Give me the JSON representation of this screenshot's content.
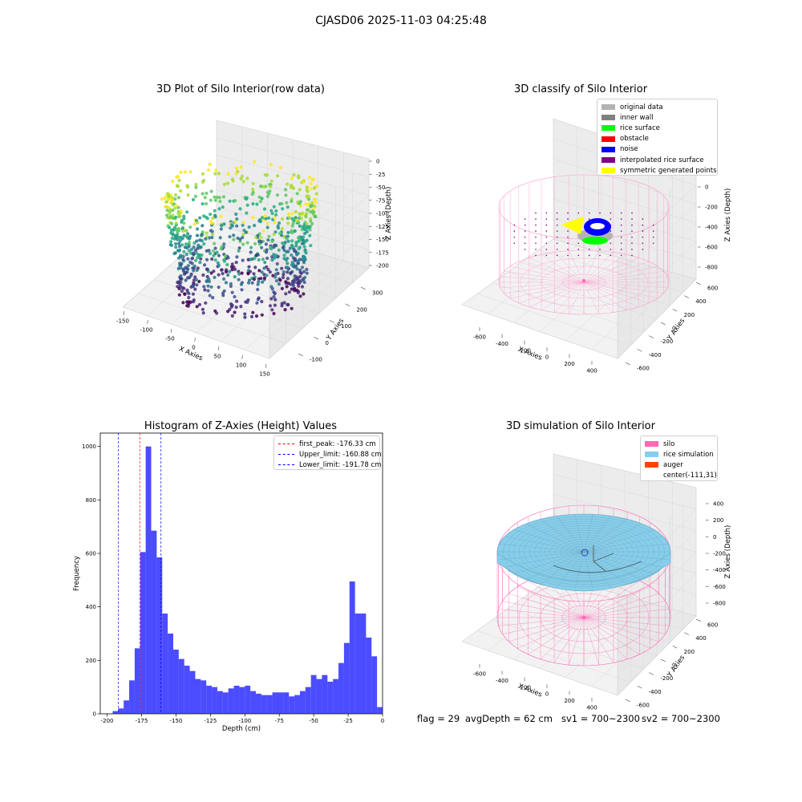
{
  "suptitle": "CJASD06 2025-11-03 04:25:48",
  "panels": {
    "raw": {
      "title": "3D Plot of Silo Interior(row data)",
      "xlabel": "X Axies",
      "ylabel": "Y Axies",
      "zlabel": "Z Axies (Depth)",
      "xticks": [
        "-150",
        "-100",
        "-50",
        "0",
        "50",
        "100",
        "150"
      ],
      "yticks": [
        "-100",
        "0",
        "100",
        "200",
        "300"
      ],
      "zticks": [
        "0",
        "-25",
        "-50",
        "-75",
        "-100",
        "-125",
        "-150",
        "-175",
        "-200"
      ]
    },
    "classify": {
      "title": "3D classify of Silo Interior",
      "xlabel": "X Axies",
      "ylabel": "Y Axies",
      "zlabel": "Z Axies (Depth)",
      "xticks": [
        "-600",
        "-400",
        "-200",
        "0",
        "200",
        "400"
      ],
      "yticks": [
        "-600",
        "-400",
        "-200",
        "0",
        "200",
        "400",
        "600"
      ],
      "zticks": [
        "200",
        "0",
        "-200",
        "-400",
        "-600",
        "-800"
      ],
      "legend": [
        {
          "label": "original data",
          "color": "#b3b3b3"
        },
        {
          "label": "inner wall",
          "color": "#808080"
        },
        {
          "label": "rice surface",
          "color": "#00ff00"
        },
        {
          "label": "obstacle",
          "color": "#ff0000"
        },
        {
          "label": "noise",
          "color": "#0000ff"
        },
        {
          "label": "interpolated rice surface",
          "color": "#800080"
        },
        {
          "label": "symmetric generated points",
          "color": "#ffff00"
        }
      ]
    },
    "simulation": {
      "title": "3D simulation of Silo Interior",
      "xlabel": "X Axies",
      "ylabel": "Y Axies",
      "zlabel": "Z Axies (Depth)",
      "xticks": [
        "-600",
        "-400",
        "-200",
        "0",
        "200",
        "400"
      ],
      "yticks": [
        "-600",
        "-400",
        "-200",
        "0",
        "200",
        "400",
        "600"
      ],
      "zticks": [
        "400",
        "200",
        "0",
        "-200",
        "-400",
        "-600",
        "-800"
      ],
      "legend": [
        {
          "label": "silo",
          "color": "#ff69b4"
        },
        {
          "label": "rice simulation",
          "color": "#87ceeb"
        },
        {
          "label": "auger",
          "color": "#ff4500"
        },
        {
          "label": "center(-111,31)",
          "color": ""
        }
      ]
    }
  },
  "status": {
    "flag": "flag = 29",
    "avg": "avgDepth = 62 cm",
    "sv1": "sv1 = 700~2300",
    "sv2": "sv2 = 700~2300"
  },
  "chart_data": [
    {
      "type": "scatter",
      "title": "3D Plot of Silo Interior(row data)",
      "xlabel": "X Axies",
      "ylabel": "Y Axies",
      "zlabel": "Z Axies (Depth)",
      "xlim": [
        -150,
        150
      ],
      "ylim": [
        -150,
        300
      ],
      "zlim": [
        -200,
        0
      ],
      "colormap": "viridis"
    },
    {
      "type": "scatter",
      "title": "3D classify of Silo Interior",
      "xlabel": "X Axies",
      "ylabel": "Y Axies",
      "zlabel": "Z Axies (Depth)",
      "xlim": [
        -700,
        500
      ],
      "ylim": [
        -650,
        650
      ],
      "zlim": [
        -900,
        300
      ]
    },
    {
      "type": "bar",
      "title": "Histogram of Z-Axies (Height) Values",
      "xlabel": "Depth (cm)",
      "ylabel": "Frequency",
      "xlim": [
        -205,
        0
      ],
      "ylim": [
        0,
        1050
      ],
      "xticks": [
        -200,
        -175,
        -150,
        -125,
        -100,
        -75,
        -50,
        -25,
        0
      ],
      "yticks": [
        0,
        200,
        400,
        600,
        800,
        1000
      ],
      "bin_start": -196,
      "bin_width": 4,
      "values": [
        10,
        20,
        50,
        125,
        245,
        605,
        1000,
        685,
        585,
        375,
        300,
        240,
        205,
        180,
        160,
        130,
        125,
        105,
        100,
        85,
        80,
        95,
        105,
        100,
        105,
        85,
        75,
        70,
        70,
        80,
        80,
        80,
        65,
        70,
        85,
        100,
        145,
        130,
        145,
        120,
        130,
        190,
        265,
        495,
        375,
        375,
        285,
        215,
        25
      ],
      "color": "#0000ff",
      "lines": [
        {
          "label": "first_peak: -176.33 cm",
          "x": -176.33,
          "color": "#ff0000"
        },
        {
          "label": "Upper_limit: -160.88 cm",
          "x": -160.88,
          "color": "#0000ff"
        },
        {
          "label": "Lower_limit: -191.78 cm",
          "x": -191.78,
          "color": "#0000ff"
        }
      ],
      "grid": false,
      "legend": "top-right"
    },
    {
      "type": "scatter",
      "title": "3D simulation of Silo Interior",
      "xlabel": "X Axies",
      "ylabel": "Y Axies",
      "zlabel": "Z Axies (Depth)",
      "xlim": [
        -700,
        500
      ],
      "ylim": [
        -650,
        650
      ],
      "zlim": [
        -900,
        500
      ]
    }
  ]
}
